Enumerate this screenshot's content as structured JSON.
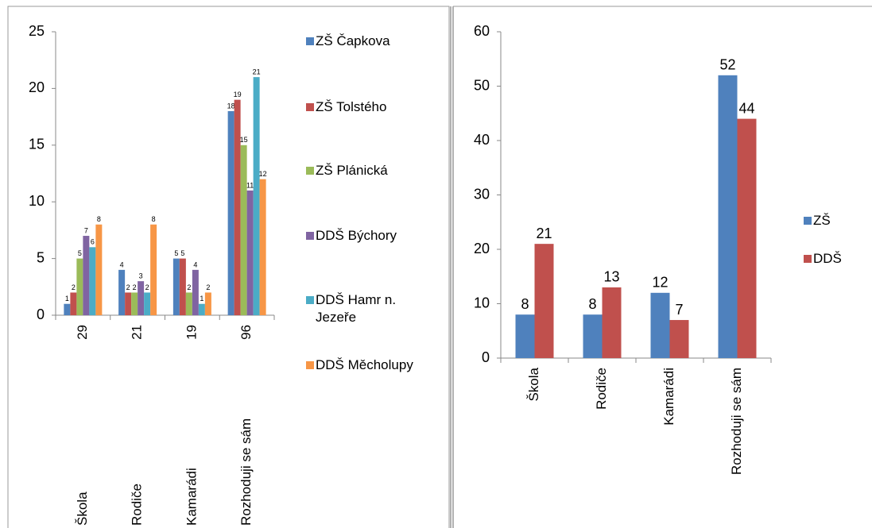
{
  "chart_data": [
    {
      "type": "bar",
      "categories": [
        "Škola",
        "Rodiče",
        "Kamarádi",
        "Rozhoduji se sám"
      ],
      "category_totals": [
        29,
        21,
        19,
        96
      ],
      "series": [
        {
          "name": "ZŠ Čapkova",
          "color": "#4f81bd",
          "values": [
            1,
            4,
            5,
            18
          ]
        },
        {
          "name": "ZŠ Tolstého",
          "color": "#c0504d",
          "values": [
            2,
            2,
            5,
            19
          ]
        },
        {
          "name": "ZŠ Plánická",
          "color": "#9bbb59",
          "values": [
            5,
            2,
            2,
            15
          ]
        },
        {
          "name": "DDŠ Býchory",
          "color": "#8064a2",
          "values": [
            7,
            3,
            4,
            11
          ]
        },
        {
          "name": "DDŠ Hamr n. Jezeře",
          "color": "#4bacc6",
          "values": [
            6,
            2,
            1,
            21
          ]
        },
        {
          "name": "DDŠ Měcholupy",
          "color": "#f79646",
          "values": [
            8,
            8,
            2,
            12
          ]
        }
      ],
      "ylim": [
        0,
        25
      ],
      "yticks": [
        0,
        5,
        10,
        15,
        20,
        25
      ],
      "legend": "right"
    },
    {
      "type": "bar",
      "categories": [
        "Škola",
        "Rodiče",
        "Kamarádi",
        "Rozhoduji se sám"
      ],
      "series": [
        {
          "name": "ZŠ",
          "color": "#4f81bd",
          "values": [
            8,
            8,
            12,
            52
          ]
        },
        {
          "name": "DDŠ",
          "color": "#c0504d",
          "values": [
            21,
            13,
            7,
            44
          ]
        }
      ],
      "ylim": [
        0,
        60
      ],
      "yticks": [
        0,
        10,
        20,
        30,
        40,
        50,
        60
      ],
      "legend": "right"
    }
  ]
}
